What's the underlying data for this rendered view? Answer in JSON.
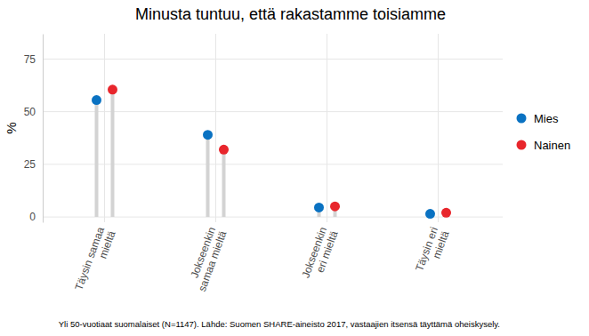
{
  "chart_data": {
    "type": "lollipop",
    "title": "Minusta tuntuu, että rakastamme toisiamme",
    "y_label": "%",
    "caption": "Yli 50-vuotiaat suomalaiset (N=1147). Lähde: Suomen SHARE-aineisto 2017, vastaajien itsensä täyttämä oheiskysely.",
    "categories": [
      "Täysin samaa\nmieltä",
      "Jokseenkin\nsamaa mieltä",
      "Jokseenkin\neri mieltä",
      "Täysin eri\nmieltä"
    ],
    "series": [
      {
        "name": "Mies",
        "color": "#0a72c2",
        "values": [
          55.5,
          39,
          4.5,
          1.5
        ]
      },
      {
        "name": "Nainen",
        "color": "#e8262c",
        "values": [
          60.5,
          32,
          5,
          2
        ]
      }
    ],
    "ylim": [
      -2.5,
      87
    ],
    "yticks": [
      0,
      25,
      50,
      75
    ],
    "grid": true,
    "legend": "right"
  }
}
